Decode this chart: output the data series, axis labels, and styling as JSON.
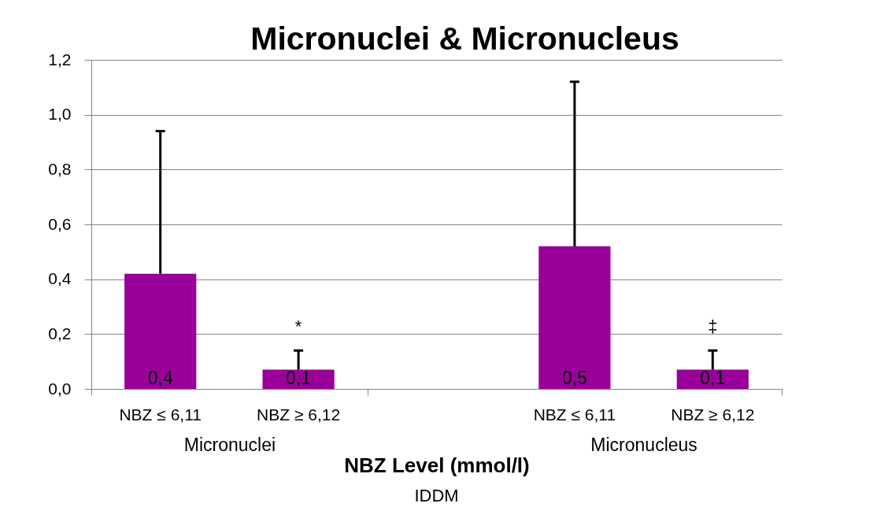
{
  "chart_data": {
    "type": "bar",
    "title": "Micronuclei & Micronucleus",
    "xlabel": "NBZ Level (mmol/l)",
    "categories": [
      "Micronuclei",
      "Micronucleus"
    ],
    "series": [
      {
        "name": "NBZ ≤ 6,11",
        "color": "#990099",
        "values": [
          0.42,
          0.52
        ],
        "errors": [
          [
            0.42,
            0.94
          ],
          [
            0.52,
            1.12
          ]
        ],
        "value_labels": [
          "0,4",
          "0,5"
        ]
      },
      {
        "name": "NBZ ≥ 6,12",
        "color": "#990099",
        "values": [
          0.07,
          0.07
        ],
        "errors": [
          [
            0.07,
            0.14
          ],
          [
            0.07,
            0.14
          ]
        ],
        "value_labels": [
          "0,1",
          "0,1"
        ]
      }
    ],
    "annotations": [
      "*",
      "‡",
      "IDDM"
    ],
    "ylim": [
      0,
      1.2
    ],
    "yticks": [
      {
        "value": 0,
        "label": "0,0"
      },
      {
        "value": 0.2,
        "label": "0,2"
      },
      {
        "value": 0.4,
        "label": "0,4"
      },
      {
        "value": 0.6,
        "label": "0,6"
      },
      {
        "value": 0.8,
        "label": "0,8"
      },
      {
        "value": 1.0,
        "label": "1,0"
      },
      {
        "value": 1.2,
        "label": "1,2"
      }
    ],
    "grid": "y"
  }
}
